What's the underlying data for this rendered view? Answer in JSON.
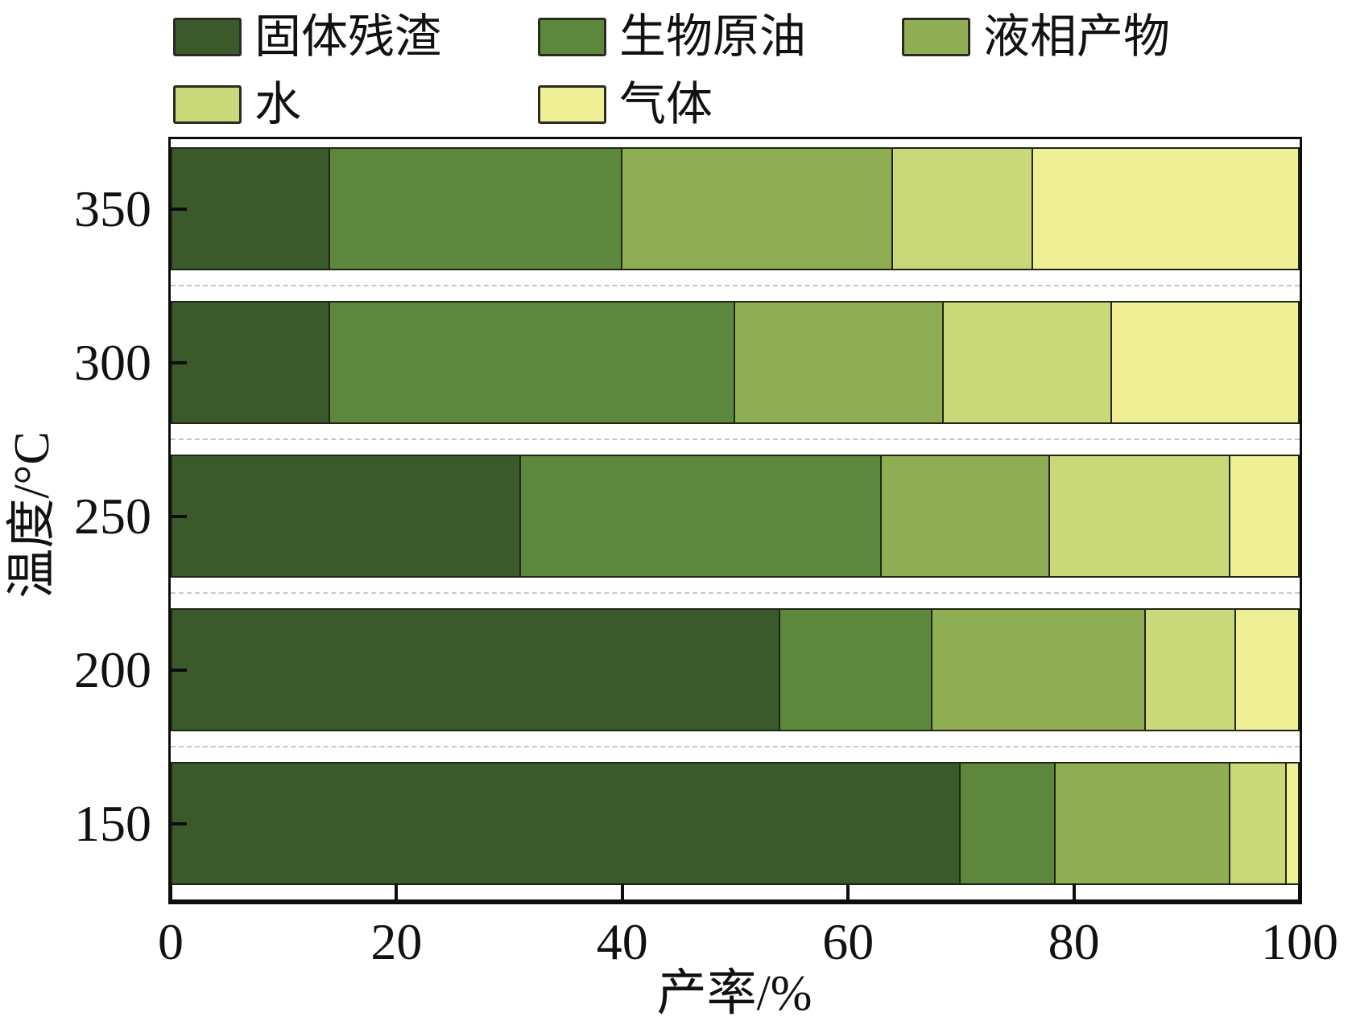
{
  "legend": {
    "items": [
      {
        "label": "固体残渣",
        "color": "#3A5A2C"
      },
      {
        "label": "生物原油",
        "color": "#5C873C"
      },
      {
        "label": "液相产物",
        "color": "#8FAE53"
      },
      {
        "label": "水",
        "color": "#C9D878"
      },
      {
        "label": "气体",
        "color": "#EFF096"
      }
    ]
  },
  "axis": {
    "x_title": "产率/%",
    "y_title": "温度/°C"
  },
  "chart_data": {
    "type": "bar",
    "stacked": true,
    "orientation": "horizontal",
    "title": "",
    "xlabel": "产率/%",
    "ylabel": "温度/°C",
    "xlim": [
      0,
      100
    ],
    "x_ticks": [
      0,
      20,
      40,
      60,
      80,
      100
    ],
    "grid": false,
    "legend_position": "top",
    "categories": [
      "350",
      "300",
      "250",
      "200",
      "150"
    ],
    "series": [
      {
        "name": "固体残渣",
        "color": "#3A5A2C",
        "values": [
          14,
          14,
          31,
          54,
          70
        ]
      },
      {
        "name": "生物原油",
        "color": "#5C873C",
        "values": [
          26,
          36,
          32,
          13.5,
          8.5
        ]
      },
      {
        "name": "液相产物",
        "color": "#8FAE53",
        "values": [
          24,
          18.5,
          15,
          19,
          15.5
        ]
      },
      {
        "name": "水",
        "color": "#C9D878",
        "values": [
          12.5,
          15,
          16,
          8,
          5
        ]
      },
      {
        "name": "气体",
        "color": "#EFF096",
        "values": [
          23.5,
          16.5,
          6,
          5.5,
          1
        ]
      }
    ]
  }
}
